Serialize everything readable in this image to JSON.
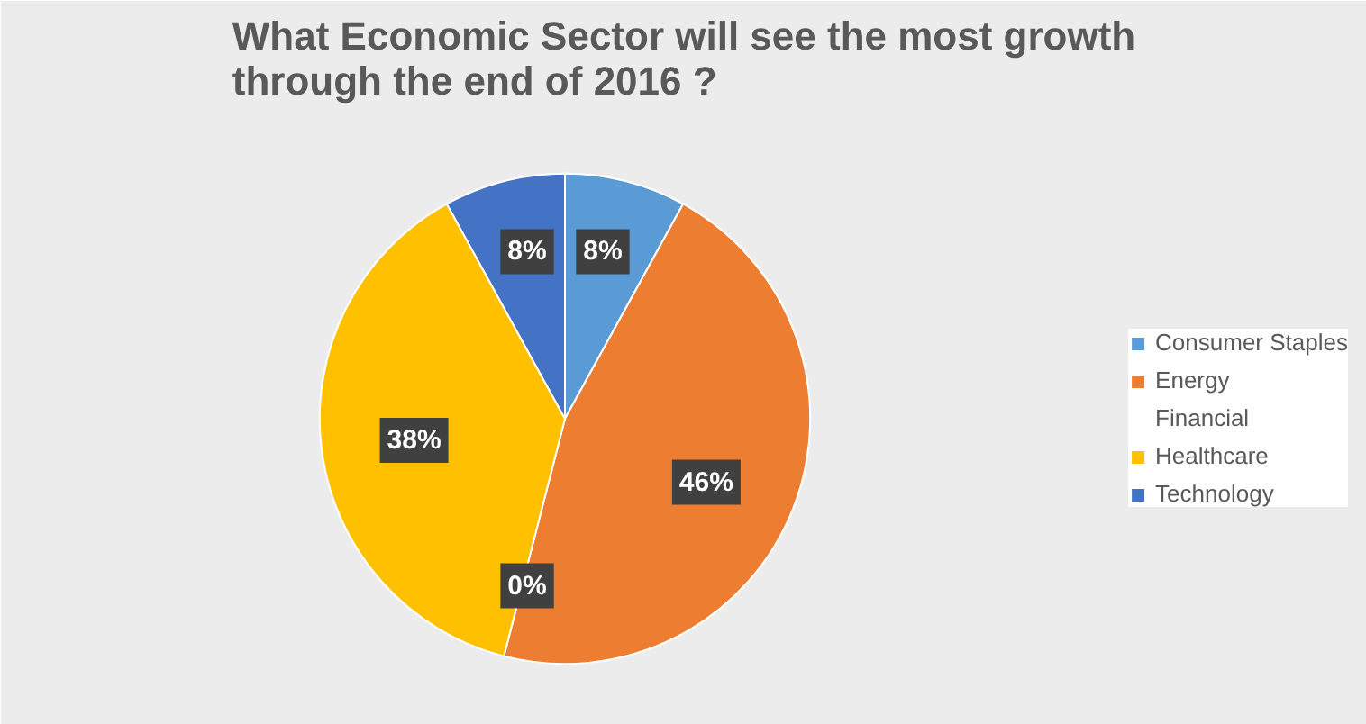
{
  "chart_data": {
    "type": "pie",
    "title": "What Economic Sector will see the most growth through the end of 2016 ?",
    "categories": [
      "Consumer Staples",
      "Energy",
      "Financial",
      "Healthcare",
      "Technology"
    ],
    "values": [
      8,
      46,
      0,
      38,
      8
    ],
    "colors": [
      "#5b9bd5",
      "#ed7d31",
      "#a5a5a5",
      "#ffc000",
      "#4472c4"
    ],
    "value_labels": [
      "8%",
      "46%",
      "0%",
      "38%",
      "8%"
    ],
    "legend": "right"
  }
}
